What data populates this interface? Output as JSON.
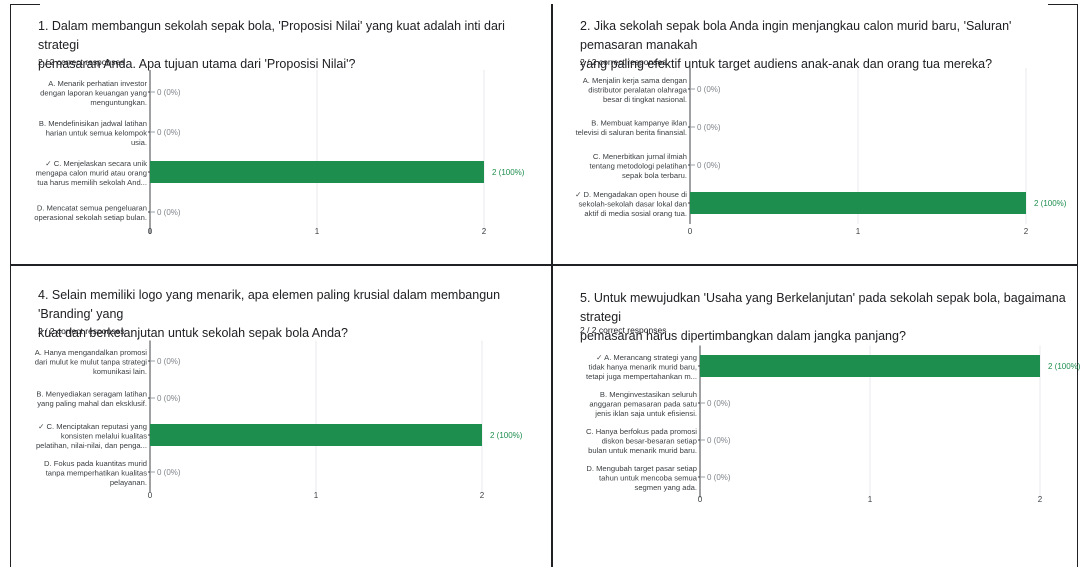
{
  "panels": [
    {
      "title_line1": "1. Dalam membangun sekolah sepak bola, 'Proposisi Nilai' yang kuat adalah inti dari strategi",
      "title_line2": "pemasaran Anda. Apa tujuan utama dari 'Proposisi Nilai'?",
      "subtitle": "2 / 2 correct responses",
      "chart_data": {
        "type": "bar",
        "orientation": "horizontal",
        "categories": [
          [
            "A. Menarik perhatian investor",
            "dengan laporan keuangan yang",
            "menguntungkan."
          ],
          [
            "B. Mendefinisikan jadwal latihan",
            "harian untuk semua kelompok",
            "usia."
          ],
          [
            "✓ C. Menjelaskan secara unik",
            "mengapa calon murid atau orang",
            "tua harus memilih sekolah And..."
          ],
          [
            "D. Mencatat semua pengeluaran",
            "operasional sekolah setiap bulan."
          ]
        ],
        "values": [
          0,
          0,
          2,
          0
        ],
        "value_labels": [
          "0 (0%)",
          "0 (0%)",
          "2 (100%)",
          "0 (0%)"
        ],
        "xticks": [
          "0",
          "1",
          "2"
        ],
        "xlim": [
          0,
          2
        ],
        "bar_color": "#1e8e4e"
      }
    },
    {
      "title_line1": "2. Jika sekolah sepak bola Anda ingin menjangkau calon murid baru, 'Saluran' pemasaran manakah",
      "title_line2": "yang paling efektif untuk target audiens anak-anak dan orang tua mereka?",
      "subtitle": "2 / 2 correct responses",
      "chart_data": {
        "type": "bar",
        "orientation": "horizontal",
        "categories": [
          [
            "A. Menjalin kerja sama dengan",
            "distributor peralatan olahraga",
            "besar di tingkat nasional."
          ],
          [
            "B. Membuat kampanye iklan",
            "televisi di saluran berita finansial."
          ],
          [
            "C. Menerbitkan jurnal ilmiah",
            "tentang metodologi pelatihan",
            "sepak bola terbaru."
          ],
          [
            "✓ D. Mengadakan open house di",
            "sekolah-sekolah dasar lokal dan",
            "aktif di media sosial orang tua."
          ]
        ],
        "values": [
          0,
          0,
          0,
          2
        ],
        "value_labels": [
          "0 (0%)",
          "0 (0%)",
          "0 (0%)",
          "2 (100%)"
        ],
        "xticks": [
          "0",
          "1",
          "2"
        ],
        "xlim": [
          0,
          2
        ],
        "bar_color": "#1e8e4e"
      }
    },
    {
      "title_line1": "4. Selain memiliki logo yang menarik, apa elemen paling krusial dalam membangun 'Branding' yang",
      "title_line2": "kuat dan berkelanjutan untuk sekolah sepak bola Anda?",
      "subtitle": "2 / 2 correct responses",
      "chart_data": {
        "type": "bar",
        "orientation": "horizontal",
        "categories": [
          [
            "A. Hanya mengandalkan promosi",
            "dari mulut ke mulut tanpa strategi",
            "komunikasi lain."
          ],
          [
            "B. Menyediakan seragam latihan",
            "yang paling mahal dan eksklusif."
          ],
          [
            "✓ C. Menciptakan reputasi yang",
            "konsisten melalui kualitas",
            "pelatihan, nilai-nilai, dan penga..."
          ],
          [
            "D. Fokus pada kuantitas murid",
            "tanpa memperhatikan kualitas",
            "pelayanan."
          ]
        ],
        "values": [
          0,
          0,
          2,
          0
        ],
        "value_labels": [
          "0 (0%)",
          "0 (0%)",
          "2 (100%)",
          "0 (0%)"
        ],
        "xticks": [
          "0",
          "1",
          "2"
        ],
        "xlim": [
          0,
          2
        ],
        "bar_color": "#1e8e4e"
      }
    },
    {
      "title_line1": "5. Untuk mewujudkan 'Usaha yang Berkelanjutan' pada sekolah sepak bola, bagaimana strategi",
      "title_line2": "pemasaran harus dipertimbangkan dalam jangka panjang?",
      "subtitle": "2 / 2 correct responses",
      "chart_data": {
        "type": "bar",
        "orientation": "horizontal",
        "categories": [
          [
            "✓ A. Merancang strategi yang",
            "tidak hanya menarik murid baru,",
            "tetapi juga mempertahankan m..."
          ],
          [
            "B. Menginvestasikan seluruh",
            "anggaran pemasaran pada satu",
            "jenis iklan saja untuk efisiensi."
          ],
          [
            "C. Hanya berfokus pada promosi",
            "diskon besar-besaran setiap",
            "bulan untuk menarik murid baru."
          ],
          [
            "D. Mengubah target pasar setiap",
            "tahun untuk mencoba semua",
            "segmen yang ada."
          ]
        ],
        "values": [
          2,
          0,
          0,
          0
        ],
        "value_labels": [
          "2 (100%)",
          "0 (0%)",
          "0 (0%)",
          "0 (0%)"
        ],
        "xticks": [
          "0",
          "1",
          "2"
        ],
        "xlim": [
          0,
          2
        ],
        "bar_color": "#1e8e4e"
      }
    }
  ]
}
